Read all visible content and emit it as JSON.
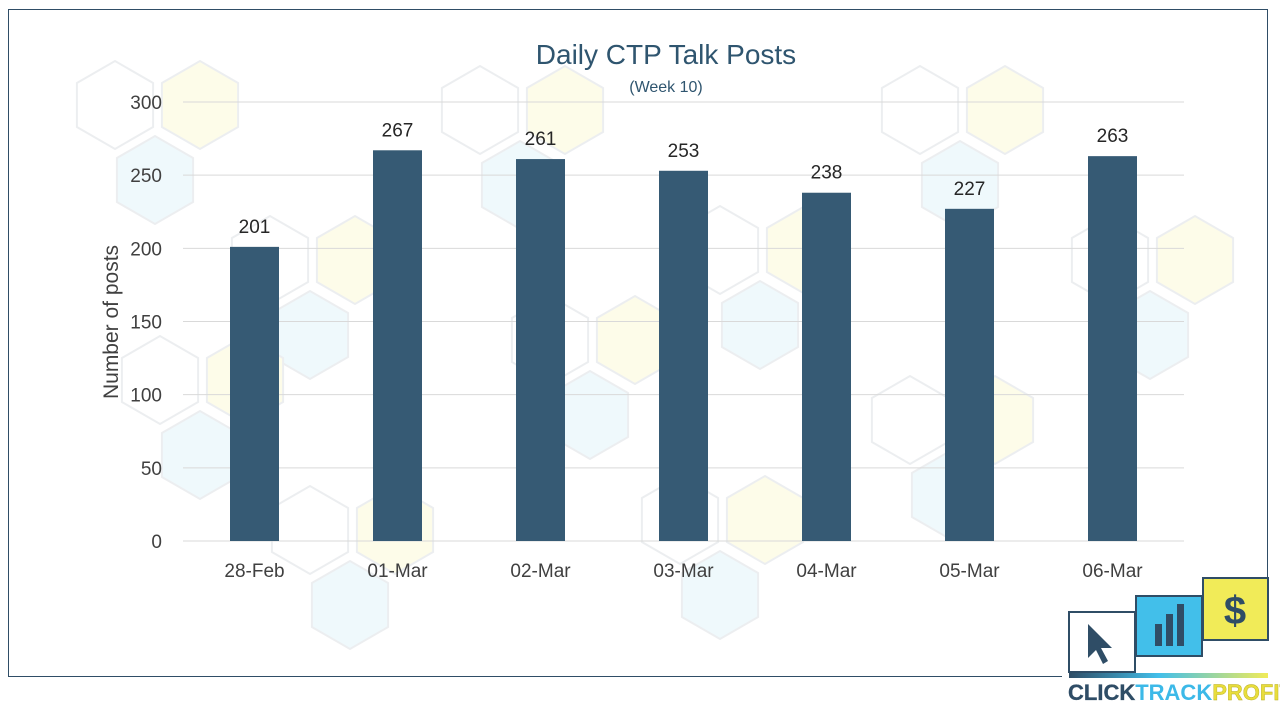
{
  "chart_data": {
    "type": "bar",
    "title": "Daily CTP Talk Posts",
    "subtitle": "(Week 10)",
    "xlabel": "",
    "ylabel": "Number of posts",
    "categories": [
      "28-Feb",
      "01-Mar",
      "02-Mar",
      "03-Mar",
      "04-Mar",
      "05-Mar",
      "06-Mar"
    ],
    "values": [
      201,
      267,
      261,
      253,
      238,
      227,
      263
    ],
    "ylim": [
      0,
      300
    ],
    "yticks": [
      0,
      50,
      100,
      150,
      200,
      250,
      300
    ],
    "grid": true,
    "legend": "none",
    "bar_color": "#365a74",
    "gridline_color": "#d9d9d9"
  },
  "logo": {
    "brand_parts": [
      "CLICK",
      "TRACK",
      "PROFIT"
    ],
    "colors": {
      "click": "#2f4d66",
      "track": "#3cb9e8",
      "profit": "#e8dd3c"
    },
    "icons": [
      "cursor-icon",
      "bar-chart-icon",
      "dollar-icon"
    ]
  }
}
